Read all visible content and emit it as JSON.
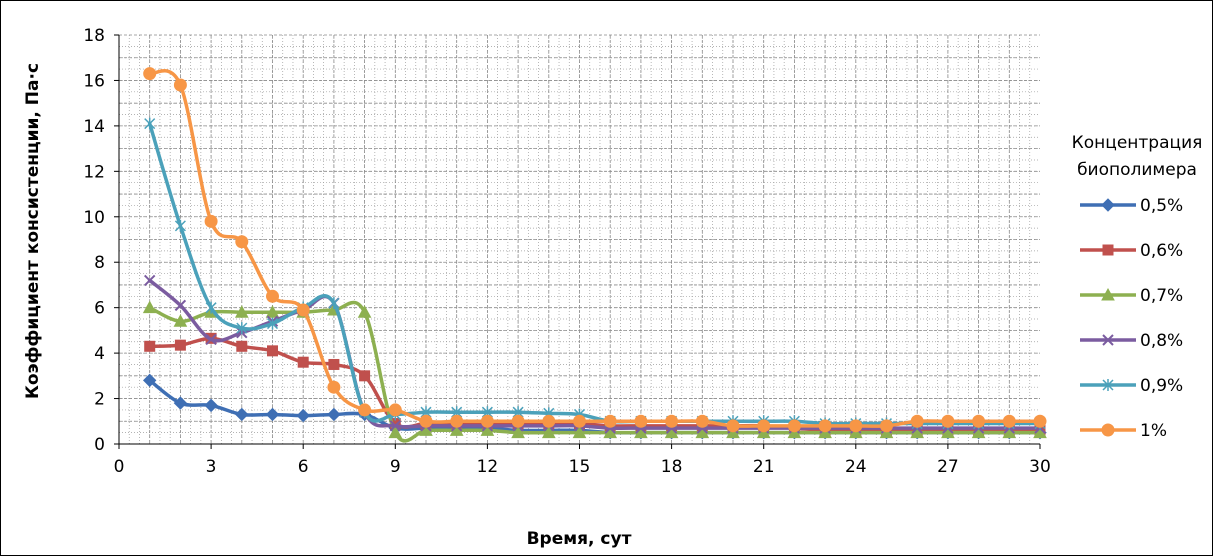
{
  "chart_data": {
    "type": "line",
    "xlabel": "Время,  сут",
    "ylabel": "Коэффициент консистенции, Па·с",
    "xlim": [
      0,
      30
    ],
    "ylim": [
      0,
      18
    ],
    "xticks": [
      0,
      3,
      6,
      9,
      12,
      15,
      18,
      21,
      24,
      27,
      30
    ],
    "yticks": [
      0,
      2,
      4,
      6,
      8,
      10,
      12,
      14,
      16,
      18
    ],
    "grid": true,
    "legend": {
      "title_line1": "Концентрация",
      "title_line2": "биополимера",
      "placement": "right"
    },
    "x": [
      1,
      2,
      3,
      4,
      5,
      6,
      7,
      8,
      9,
      10,
      11,
      12,
      13,
      14,
      15,
      16,
      17,
      18,
      19,
      20,
      21,
      22,
      23,
      24,
      25,
      26,
      27,
      28,
      29,
      30
    ],
    "series": [
      {
        "name": "0,5%",
        "color": "#3F6FB4",
        "marker": "diamond",
        "values": [
          2.8,
          1.8,
          1.7,
          1.3,
          1.3,
          1.25,
          1.3,
          1.3,
          0.7,
          0.7,
          0.7,
          0.7,
          0.6,
          0.6,
          0.6,
          0.5,
          0.5,
          0.5,
          0.5,
          0.5,
          0.5,
          0.5,
          0.5,
          0.5,
          0.5,
          0.5,
          0.5,
          0.5,
          0.5,
          0.5
        ]
      },
      {
        "name": "0,6%",
        "color": "#C0504D",
        "marker": "square",
        "values": [
          4.3,
          4.35,
          4.65,
          4.3,
          4.1,
          3.6,
          3.5,
          3.0,
          0.9,
          0.9,
          0.9,
          0.9,
          0.9,
          0.9,
          0.9,
          0.8,
          0.8,
          0.8,
          0.8,
          0.8,
          0.8,
          0.7,
          0.6,
          0.6,
          0.6,
          0.6,
          0.6,
          0.6,
          0.6,
          0.6
        ]
      },
      {
        "name": "0,7%",
        "color": "#8DB050",
        "marker": "triangle",
        "values": [
          6.0,
          5.4,
          5.8,
          5.8,
          5.8,
          5.8,
          5.9,
          5.8,
          0.5,
          0.6,
          0.6,
          0.6,
          0.5,
          0.5,
          0.5,
          0.5,
          0.5,
          0.5,
          0.5,
          0.5,
          0.5,
          0.5,
          0.5,
          0.5,
          0.5,
          0.5,
          0.5,
          0.5,
          0.5,
          0.5
        ]
      },
      {
        "name": "0,8%",
        "color": "#7B5CA0",
        "marker": "x",
        "values": [
          7.2,
          6.1,
          4.6,
          4.9,
          5.4,
          5.9,
          6.2,
          1.4,
          0.8,
          0.8,
          0.8,
          0.8,
          0.8,
          0.8,
          0.8,
          0.7,
          0.7,
          0.7,
          0.7,
          0.7,
          0.7,
          0.7,
          0.7,
          0.7,
          0.7,
          0.7,
          0.7,
          0.7,
          0.7,
          0.7
        ]
      },
      {
        "name": "0,9%",
        "color": "#4BA1BA",
        "marker": "asterisk",
        "values": [
          14.1,
          9.6,
          6.0,
          5.1,
          5.3,
          6.0,
          6.2,
          1.4,
          1.3,
          1.4,
          1.4,
          1.4,
          1.4,
          1.35,
          1.3,
          1.0,
          1.0,
          1.0,
          1.0,
          1.0,
          1.0,
          1.0,
          0.9,
          0.9,
          0.9,
          0.9,
          0.9,
          0.9,
          0.9,
          0.9
        ]
      },
      {
        "name": "1%",
        "color": "#F79646",
        "marker": "circle",
        "values": [
          16.3,
          15.8,
          9.8,
          8.9,
          6.5,
          5.9,
          2.5,
          1.5,
          1.5,
          1.0,
          1.0,
          1.0,
          1.0,
          1.0,
          1.0,
          1.0,
          1.0,
          1.0,
          1.0,
          0.8,
          0.8,
          0.8,
          0.8,
          0.8,
          0.8,
          1.0,
          1.0,
          1.0,
          1.0,
          1.0
        ]
      }
    ]
  }
}
